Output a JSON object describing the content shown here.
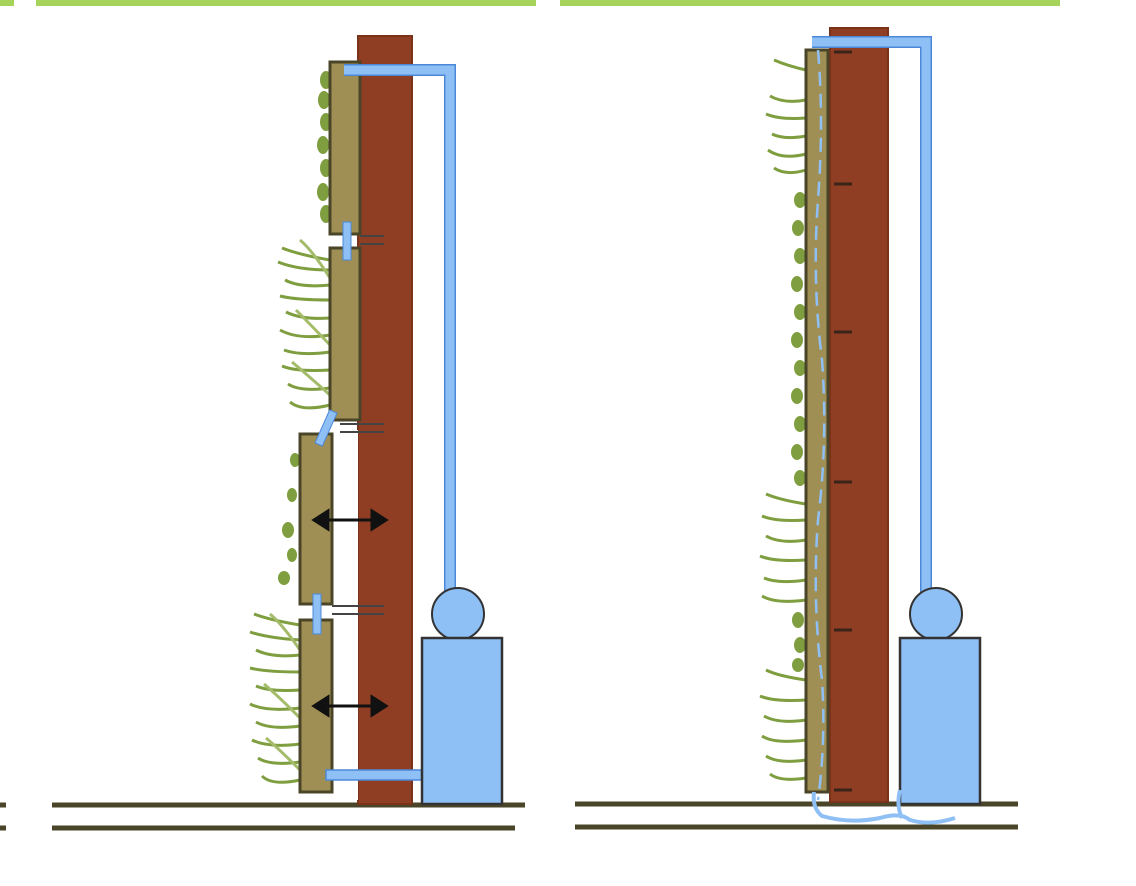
{
  "diagram": {
    "panels": [
      {
        "id": "modular-system",
        "description_visible": false
      },
      {
        "id": "continuous-system",
        "description_visible": false
      }
    ],
    "colors": {
      "header_bar": "#a6d45a",
      "wall": "#8f3e24",
      "wall_dark": "#7a3219",
      "planter": "#a08f55",
      "planter_border": "#4a4428",
      "water": "#8ebff5",
      "water_border": "#4c88d8",
      "ground": "#4a4428",
      "plant": "#7f9e3f",
      "plant_light": "#a4bc6a",
      "arrow": "#111111",
      "tick": "#3a2418"
    },
    "icons": [
      "double-arrow-icon",
      "pump-icon",
      "water-tank-icon"
    ]
  }
}
